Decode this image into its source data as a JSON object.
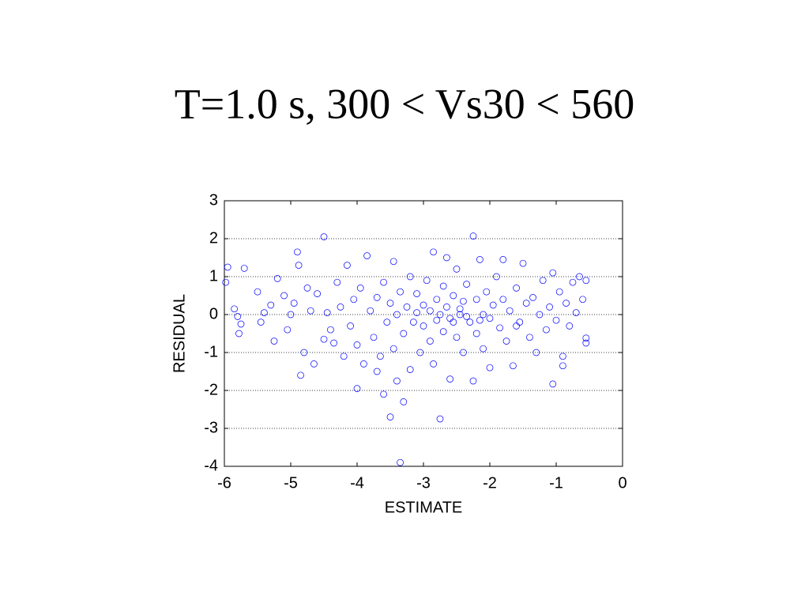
{
  "chart_data": {
    "type": "scatter",
    "title": "T=1.0 s, 300 < Vs30 < 560",
    "x_label": "ESTIMATE",
    "y_label": "RESIDUAL",
    "color": "#0000ff",
    "grid": true,
    "xlim": [
      -6,
      0
    ],
    "ylim": [
      -4,
      3
    ],
    "xticks": [
      -6,
      -5,
      -4,
      -3,
      -2,
      -1,
      0
    ],
    "yticks": [
      -4,
      -3,
      -2,
      -1,
      0,
      1,
      2,
      3
    ],
    "x": [
      -5.95,
      -5.98,
      -5.85,
      -5.8,
      -5.75,
      -5.78,
      -5.7,
      -5.5,
      -5.45,
      -5.4,
      -5.3,
      -5.25,
      -5.2,
      -5.1,
      -5.05,
      -5.0,
      -4.95,
      -4.9,
      -4.88,
      -4.85,
      -4.8,
      -4.75,
      -4.7,
      -4.65,
      -4.6,
      -4.5,
      -4.5,
      -4.45,
      -4.4,
      -4.35,
      -4.3,
      -4.25,
      -4.2,
      -4.15,
      -4.1,
      -4.05,
      -4.0,
      -4.0,
      -3.95,
      -3.9,
      -3.85,
      -3.8,
      -3.75,
      -3.7,
      -3.65,
      -3.6,
      -3.6,
      -3.55,
      -3.5,
      -3.5,
      -3.45,
      -3.45,
      -3.4,
      -3.4,
      -3.35,
      -3.35,
      -3.3,
      -3.3,
      -3.25,
      -3.2,
      -3.2,
      -3.15,
      -3.1,
      -3.05,
      -3.0,
      -3.0,
      -2.95,
      -2.9,
      -2.9,
      -2.85,
      -2.85,
      -2.8,
      -2.75,
      -2.75,
      -2.7,
      -2.7,
      -2.65,
      -2.65,
      -2.6,
      -2.6,
      -2.55,
      -2.5,
      -2.5,
      -2.45,
      -2.4,
      -2.4,
      -2.35,
      -2.3,
      -2.25,
      -2.25,
      -2.2,
      -2.2,
      -2.15,
      -2.1,
      -2.1,
      -2.05,
      -2.0,
      -2.0,
      -1.95,
      -1.9,
      -1.85,
      -1.8,
      -1.8,
      -1.75,
      -1.7,
      -1.65,
      -1.6,
      -1.55,
      -1.5,
      -1.45,
      -1.4,
      -1.35,
      -1.3,
      -1.25,
      -1.2,
      -1.15,
      -1.1,
      -1.05,
      -1.05,
      -1.0,
      -0.95,
      -0.9,
      -0.85,
      -0.8,
      -0.75,
      -0.7,
      -0.65,
      -0.6,
      -0.55,
      -0.55,
      -0.55,
      -0.9,
      -2.35,
      -2.45,
      -2.55,
      -3.1,
      -2.8,
      -2.15,
      -1.6,
      -3.7
    ],
    "values": [
      1.25,
      0.85,
      0.15,
      -0.05,
      -0.25,
      -0.5,
      1.22,
      0.6,
      -0.2,
      0.05,
      0.25,
      -0.7,
      0.95,
      0.5,
      -0.4,
      0.0,
      0.3,
      1.65,
      1.3,
      -1.6,
      -1.0,
      0.7,
      0.1,
      -1.3,
      0.55,
      2.05,
      -0.65,
      0.05,
      -0.4,
      -0.75,
      0.85,
      0.2,
      -1.1,
      1.3,
      -0.3,
      0.4,
      -1.95,
      -0.8,
      0.7,
      -1.3,
      1.55,
      0.1,
      -0.6,
      0.45,
      -1.1,
      -2.1,
      0.85,
      -0.2,
      -2.7,
      0.3,
      -0.9,
      1.4,
      -1.75,
      0.0,
      -3.9,
      0.6,
      -2.3,
      -0.5,
      0.2,
      -1.45,
      1.0,
      -0.2,
      0.55,
      -1.0,
      0.25,
      -0.3,
      0.9,
      -0.7,
      0.1,
      1.65,
      -1.3,
      0.4,
      -2.75,
      0.0,
      0.75,
      -0.45,
      1.5,
      0.2,
      -1.7,
      -0.1,
      0.5,
      1.2,
      -0.6,
      0.0,
      0.35,
      -1.0,
      0.8,
      -0.2,
      2.07,
      -1.75,
      0.4,
      -0.5,
      1.45,
      0.0,
      -0.9,
      0.6,
      -0.1,
      -1.4,
      0.25,
      1.0,
      -0.35,
      0.4,
      1.45,
      -0.7,
      0.1,
      -1.35,
      0.7,
      -0.2,
      1.35,
      0.3,
      -0.6,
      0.45,
      -1.0,
      0.0,
      0.9,
      -0.4,
      0.2,
      -1.83,
      1.1,
      -0.15,
      0.6,
      -1.1,
      0.3,
      -0.3,
      0.85,
      0.05,
      1.0,
      0.4,
      -0.62,
      -0.75,
      0.9,
      -1.35,
      -0.05,
      0.15,
      -0.2,
      0.05,
      -0.15,
      -0.15,
      -0.3,
      -1.5
    ]
  }
}
